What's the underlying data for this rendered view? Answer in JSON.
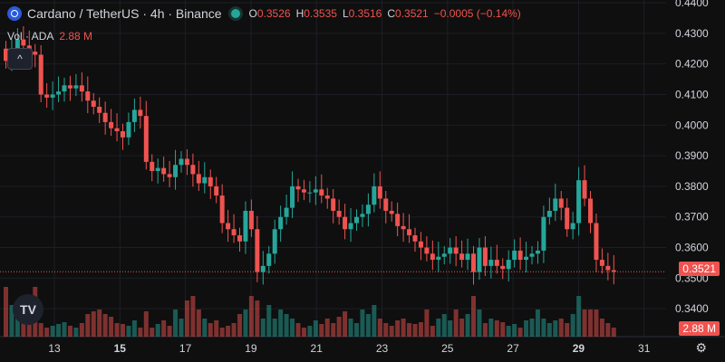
{
  "legend": {
    "title": "Cardano / TetherUS · 4h · Binance",
    "open_label": "O",
    "open": "0.3526",
    "high_label": "H",
    "high": "0.3535",
    "low_label": "L",
    "low": "0.3516",
    "close_label": "C",
    "close": "0.3521",
    "change": "−0.0005 (−0.14%)"
  },
  "volume": {
    "label": "Vol · ADA",
    "value": "2.88 M"
  },
  "last_price": "0.3521",
  "last_volume": "2.88 M",
  "colors": {
    "up": "#26a69a",
    "down": "#ef5350",
    "background": "#0f0f0f",
    "text": "#d1d4dc"
  },
  "icons": {
    "settings": "gear-icon",
    "collapse": "chevron-up-icon",
    "logo": "tradingview-logo-icon"
  },
  "chart_data": {
    "type": "candlestick",
    "y_ticks": [
      "0.4400",
      "0.4300",
      "0.4200",
      "0.4100",
      "0.4000",
      "0.3900",
      "0.3800",
      "0.3700",
      "0.3600",
      "0.3500",
      "0.3400"
    ],
    "ylim": [
      0.33,
      0.44
    ],
    "x_ticks": [
      "13",
      "15",
      "17",
      "19",
      "21",
      "23",
      "25",
      "27",
      "29",
      "31"
    ],
    "x_ticks_bold": [
      "15",
      "29"
    ],
    "closes": [
      0.421,
      0.425,
      0.428,
      0.426,
      0.424,
      0.423,
      0.41,
      0.409,
      0.41,
      0.411,
      0.413,
      0.412,
      0.413,
      0.411,
      0.408,
      0.406,
      0.404,
      0.401,
      0.399,
      0.398,
      0.396,
      0.401,
      0.405,
      0.403,
      0.388,
      0.385,
      0.386,
      0.384,
      0.383,
      0.387,
      0.389,
      0.387,
      0.384,
      0.381,
      0.383,
      0.38,
      0.377,
      0.368,
      0.366,
      0.364,
      0.362,
      0.372,
      0.366,
      0.352,
      0.354,
      0.358,
      0.366,
      0.37,
      0.373,
      0.38,
      0.379,
      0.378,
      0.378,
      0.379,
      0.377,
      0.376,
      0.372,
      0.37,
      0.366,
      0.368,
      0.37,
      0.371,
      0.374,
      0.38,
      0.376,
      0.372,
      0.371,
      0.367,
      0.366,
      0.364,
      0.362,
      0.36,
      0.358,
      0.356,
      0.357,
      0.358,
      0.36,
      0.358,
      0.356,
      0.358,
      0.352,
      0.36,
      0.354,
      0.356,
      0.354,
      0.353,
      0.356,
      0.359,
      0.356,
      0.357,
      0.358,
      0.359,
      0.37,
      0.372,
      0.376,
      0.373,
      0.366,
      0.368,
      0.382,
      0.376,
      0.368,
      0.356,
      0.354,
      0.3526,
      0.3521
    ],
    "volumes": [
      0.55,
      0.35,
      0.25,
      0.2,
      0.3,
      0.55,
      0.15,
      0.1,
      0.12,
      0.14,
      0.16,
      0.12,
      0.1,
      0.15,
      0.25,
      0.28,
      0.3,
      0.25,
      0.22,
      0.15,
      0.14,
      0.12,
      0.18,
      0.1,
      0.28,
      0.1,
      0.14,
      0.18,
      0.12,
      0.3,
      0.2,
      0.4,
      0.45,
      0.3,
      0.2,
      0.15,
      0.18,
      0.1,
      0.12,
      0.15,
      0.25,
      0.3,
      0.45,
      0.4,
      0.2,
      0.35,
      0.2,
      0.3,
      0.25,
      0.2,
      0.15,
      0.1,
      0.12,
      0.18,
      0.14,
      0.2,
      0.15,
      0.22,
      0.28,
      0.2,
      0.15,
      0.3,
      0.25,
      0.35,
      0.2,
      0.15,
      0.12,
      0.18,
      0.2,
      0.15,
      0.14,
      0.16,
      0.3,
      0.12,
      0.2,
      0.25,
      0.18,
      0.3,
      0.2,
      0.25,
      0.45,
      0.3,
      0.15,
      0.2,
      0.18,
      0.16,
      0.12,
      0.14,
      0.1,
      0.18,
      0.2,
      0.3,
      0.2,
      0.15,
      0.18,
      0.2,
      0.15,
      0.25,
      0.45,
      0.3,
      0.3,
      0.3,
      0.2,
      0.15,
      0.1
    ]
  }
}
